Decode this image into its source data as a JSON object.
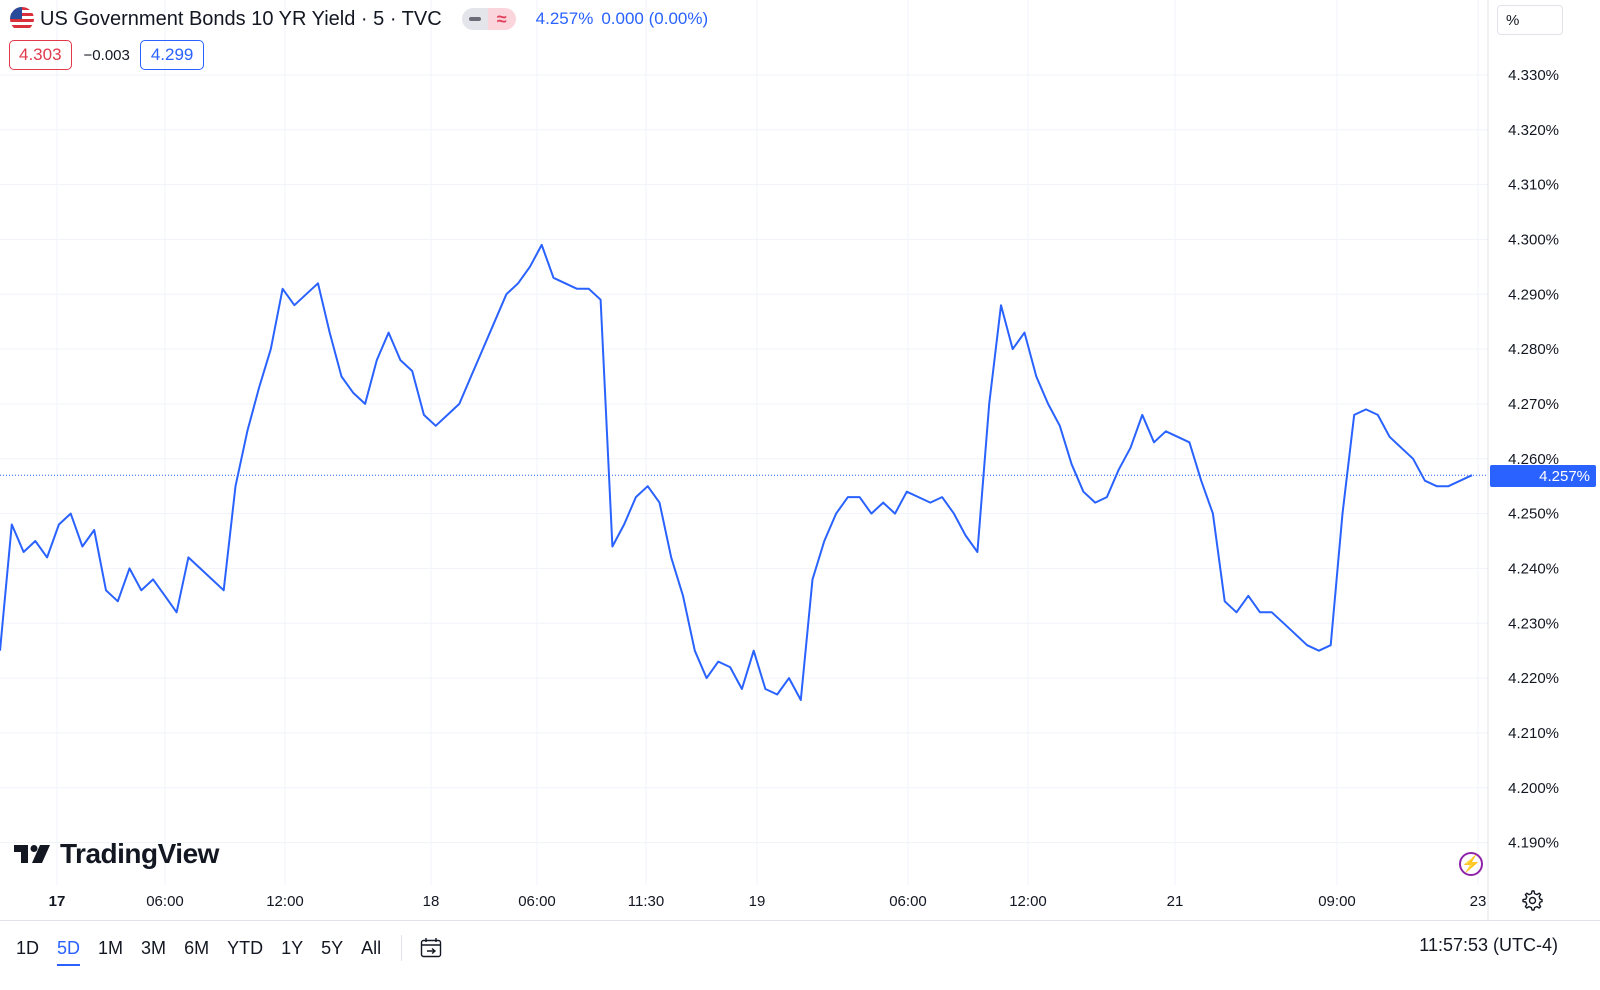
{
  "header": {
    "title": "US Government Bonds 10 YR Yield · 5 · TVC",
    "last_value": "4.257%",
    "change": "0.000 (0.00%)",
    "bid": "4.303",
    "spread": "−0.003",
    "ask": "4.299",
    "unit": "%"
  },
  "colors": {
    "line": "#2962ff",
    "grid": "#f0f3fa",
    "bid_red": "#e03a4b",
    "accent": "#2962ff"
  },
  "logo": {
    "text": "TradingView"
  },
  "price_label": "4.257%",
  "time_ranges": [
    "1D",
    "5D",
    "1M",
    "3M",
    "6M",
    "YTD",
    "1Y",
    "5Y",
    "All"
  ],
  "active_range": "5D",
  "clock": "11:57:53 (UTC-4)",
  "icons": {
    "flag": "us-flag-icon",
    "calendar": "calendar-icon",
    "flash": "flash-icon",
    "settings": "gear-icon"
  },
  "chart_data": {
    "type": "line",
    "title": "US Government Bonds 10 YR Yield · 5 · TVC",
    "ylim": [
      4.185,
      4.335
    ],
    "y_ticks": [
      "4.330%",
      "4.320%",
      "4.310%",
      "4.300%",
      "4.290%",
      "4.280%",
      "4.270%",
      "4.260%",
      "4.250%",
      "4.240%",
      "4.230%",
      "4.220%",
      "4.210%",
      "4.200%",
      "4.190%"
    ],
    "y_tick_values": [
      4.33,
      4.32,
      4.31,
      4.3,
      4.29,
      4.28,
      4.27,
      4.26,
      4.25,
      4.24,
      4.23,
      4.22,
      4.21,
      4.2,
      4.19
    ],
    "x_ticks": [
      "17",
      "06:00",
      "12:00",
      "18",
      "06:00",
      "11:30",
      "19",
      "06:00",
      "12:00",
      "21",
      "09:00",
      "23"
    ],
    "x_tick_index": [
      0,
      3,
      6,
      9,
      12,
      15,
      18,
      21,
      24,
      27,
      30,
      33
    ],
    "last_value": 4.257,
    "grid": true,
    "series": [
      {
        "values": [
          4.225,
          4.248,
          4.243,
          4.245,
          4.242,
          4.248,
          4.25,
          4.244,
          4.247,
          4.236,
          4.234,
          4.24,
          4.236,
          4.238,
          4.235,
          4.232,
          4.242,
          4.24,
          4.238,
          4.236,
          4.255,
          4.265,
          4.273,
          4.28,
          4.291,
          4.288,
          4.29,
          4.292,
          4.283,
          4.275,
          4.272,
          4.27,
          4.278,
          4.283,
          4.278,
          4.276,
          4.268,
          4.266,
          4.268,
          4.27,
          4.275,
          4.28,
          4.285,
          4.29,
          4.292,
          4.295,
          4.299,
          4.293,
          4.292,
          4.291,
          4.291,
          4.289,
          4.244,
          4.248,
          4.253,
          4.255,
          4.252,
          4.242,
          4.235,
          4.225,
          4.22,
          4.223,
          4.222,
          4.218,
          4.225,
          4.218,
          4.217,
          4.22,
          4.216,
          4.238,
          4.245,
          4.25,
          4.253,
          4.253,
          4.25,
          4.252,
          4.25,
          4.254,
          4.253,
          4.252,
          4.253,
          4.25,
          4.246,
          4.243,
          4.27,
          4.288,
          4.28,
          4.283,
          4.275,
          4.27,
          4.266,
          4.259,
          4.254,
          4.252,
          4.253,
          4.258,
          4.262,
          4.268,
          4.263,
          4.265,
          4.264,
          4.263,
          4.256,
          4.25,
          4.234,
          4.232,
          4.235,
          4.232,
          4.232,
          4.23,
          4.228,
          4.226,
          4.225,
          4.226,
          4.25,
          4.268,
          4.269,
          4.268,
          4.264,
          4.262,
          4.26,
          4.256,
          4.255,
          4.255,
          4.256,
          4.257
        ]
      }
    ]
  }
}
